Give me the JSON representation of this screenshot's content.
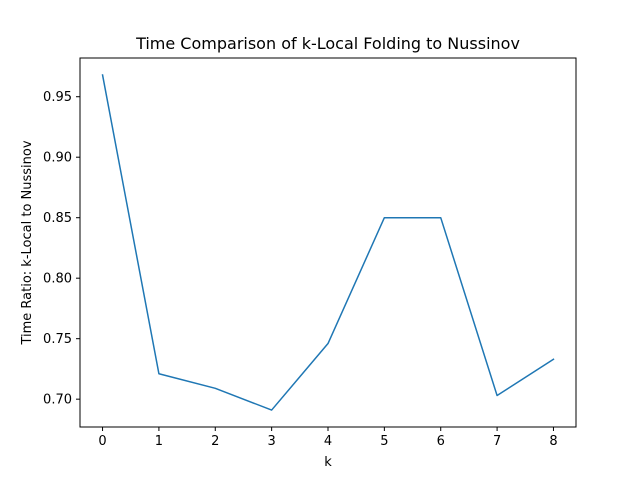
{
  "chart_data": {
    "type": "line",
    "title": "Time Comparison of k-Local Folding to Nussinov",
    "xlabel": "k",
    "ylabel": "Time Ratio: k-Local to Nussinov",
    "x": [
      0,
      1,
      2,
      3,
      4,
      5,
      6,
      7,
      8
    ],
    "series": [
      {
        "values": [
          0.968,
          0.721,
          0.709,
          0.691,
          0.746,
          0.85,
          0.85,
          0.703,
          0.733
        ],
        "color": "#1f77b4"
      }
    ],
    "xlim": [
      -0.4,
      8.4
    ],
    "ylim": [
      0.677,
      0.982
    ],
    "xticks": [
      "0",
      "1",
      "2",
      "3",
      "4",
      "5",
      "6",
      "7",
      "8"
    ],
    "yticks": [
      "0.70",
      "0.75",
      "0.80",
      "0.85",
      "0.90",
      "0.95"
    ],
    "grid": false,
    "legend": "none"
  }
}
